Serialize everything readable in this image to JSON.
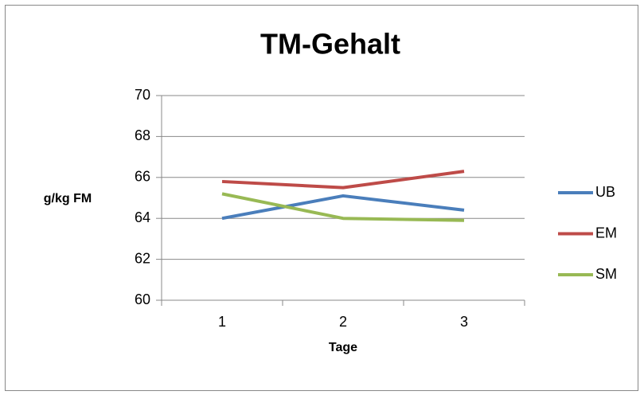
{
  "chart_data": {
    "type": "line",
    "title": "TM-Gehalt",
    "x_label": "Tage",
    "y_label": "g/kg FM",
    "categories": [
      "1",
      "2",
      "3"
    ],
    "series": [
      {
        "name": "UB",
        "color": "#4a7ebb",
        "values": [
          64.0,
          65.1,
          64.4
        ]
      },
      {
        "name": "EM",
        "color": "#be4b48",
        "values": [
          65.8,
          65.5,
          66.3
        ]
      },
      {
        "name": "SM",
        "color": "#98b954",
        "values": [
          65.2,
          64.0,
          63.9
        ]
      }
    ],
    "ylim": [
      60,
      70
    ],
    "yticks": [
      60,
      62,
      64,
      66,
      68,
      70
    ],
    "grid": true,
    "legend": "right"
  }
}
